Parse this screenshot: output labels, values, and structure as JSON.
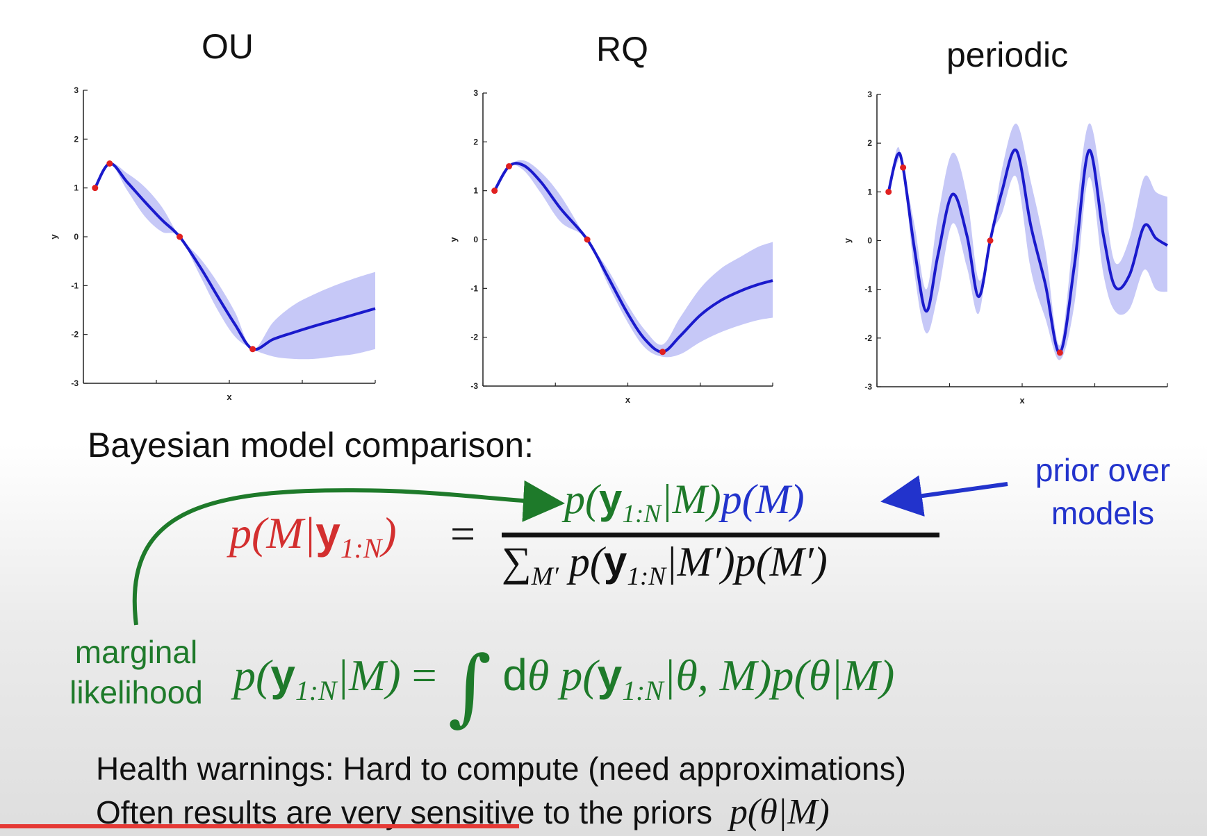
{
  "chart_data": [
    {
      "type": "line",
      "title": "OU",
      "xlabel": "x",
      "ylabel": "y",
      "ylim": [
        -3,
        3
      ],
      "yticks": [
        "3",
        "2",
        "1",
        "0",
        "-1",
        "-2",
        "-3"
      ],
      "xlim": [
        0,
        1
      ],
      "observations": [
        [
          0.04,
          1.0
        ],
        [
          0.09,
          1.5
        ],
        [
          0.33,
          0.0
        ],
        [
          0.58,
          -2.3
        ]
      ],
      "series": [
        {
          "x": [
            0.04,
            0.09,
            0.15,
            0.21,
            0.27,
            0.33,
            0.4,
            0.46,
            0.52,
            0.58,
            0.65,
            0.72,
            0.79,
            0.86,
            0.93,
            1.0
          ],
          "values": [
            1.0,
            1.5,
            1.12,
            0.72,
            0.34,
            0.0,
            -0.62,
            -1.22,
            -1.8,
            -2.3,
            -2.1,
            -1.96,
            -1.83,
            -1.71,
            -1.59,
            -1.47
          ],
          "lower": [
            1.0,
            1.5,
            0.95,
            0.42,
            0.1,
            0.0,
            -0.8,
            -1.5,
            -2.05,
            -2.3,
            -2.45,
            -2.5,
            -2.5,
            -2.45,
            -2.4,
            -2.3
          ],
          "upper": [
            1.0,
            1.5,
            1.3,
            1.02,
            0.6,
            0.0,
            -0.44,
            -0.94,
            -1.55,
            -2.3,
            -1.75,
            -1.4,
            -1.18,
            -1.0,
            -0.85,
            -0.72
          ]
        }
      ]
    },
    {
      "type": "line",
      "title": "RQ",
      "xlabel": "x",
      "ylabel": "y",
      "ylim": [
        -3,
        3
      ],
      "yticks": [
        "3",
        "2",
        "1",
        "0",
        "-1",
        "-2",
        "-3"
      ],
      "xlim": [
        0,
        1
      ],
      "observations": [
        [
          0.04,
          1.0
        ],
        [
          0.09,
          1.5
        ],
        [
          0.36,
          0.0
        ],
        [
          0.62,
          -2.3
        ]
      ],
      "series": [
        {
          "x": [
            0.04,
            0.09,
            0.14,
            0.2,
            0.27,
            0.36,
            0.43,
            0.5,
            0.56,
            0.62,
            0.68,
            0.75,
            0.82,
            0.89,
            0.95,
            1.0
          ],
          "values": [
            1.0,
            1.5,
            1.52,
            1.18,
            0.62,
            0.0,
            -0.75,
            -1.52,
            -2.05,
            -2.3,
            -1.98,
            -1.55,
            -1.25,
            -1.05,
            -0.92,
            -0.84
          ],
          "lower": [
            1.0,
            1.5,
            1.42,
            0.95,
            0.35,
            0.0,
            -0.9,
            -1.7,
            -2.22,
            -2.4,
            -2.35,
            -2.1,
            -1.9,
            -1.75,
            -1.65,
            -1.6
          ],
          "upper": [
            1.0,
            1.5,
            1.62,
            1.38,
            0.88,
            0.0,
            -0.6,
            -1.34,
            -1.86,
            -2.15,
            -1.6,
            -1.0,
            -0.6,
            -0.35,
            -0.15,
            -0.05
          ]
        }
      ]
    },
    {
      "type": "line",
      "title": "periodic",
      "xlabel": "x",
      "ylabel": "y",
      "ylim": [
        -3,
        3
      ],
      "yticks": [
        "3",
        "2",
        "1",
        "0",
        "-1",
        "-2",
        "-3"
      ],
      "xlim": [
        0,
        1
      ],
      "observations": [
        [
          0.04,
          1.0
        ],
        [
          0.09,
          1.5
        ],
        [
          0.39,
          0.0
        ],
        [
          0.63,
          -2.3
        ]
      ],
      "series": [
        {
          "x": [
            0.04,
            0.07,
            0.09,
            0.13,
            0.17,
            0.21,
            0.26,
            0.31,
            0.35,
            0.39,
            0.43,
            0.48,
            0.53,
            0.58,
            0.63,
            0.68,
            0.73,
            0.78,
            0.82,
            0.87,
            0.92,
            0.96,
            1.0
          ],
          "values": [
            1.0,
            1.75,
            1.5,
            -0.2,
            -1.45,
            -0.3,
            0.95,
            0.1,
            -1.15,
            0.0,
            1.0,
            1.85,
            0.3,
            -0.9,
            -2.3,
            -0.5,
            1.85,
            0.1,
            -0.95,
            -0.7,
            0.3,
            0.05,
            -0.1
          ],
          "lower": [
            1.0,
            1.6,
            1.5,
            -0.7,
            -1.9,
            -1.1,
            0.35,
            -0.55,
            -1.5,
            0.0,
            0.55,
            1.3,
            -0.6,
            -1.6,
            -2.45,
            -1.3,
            1.3,
            -0.7,
            -1.45,
            -1.4,
            -0.6,
            -1.0,
            -1.05
          ],
          "upper": [
            1.0,
            1.9,
            1.5,
            0.3,
            -1.0,
            0.5,
            1.8,
            0.9,
            -0.8,
            0.0,
            1.45,
            2.4,
            1.2,
            -0.2,
            -2.15,
            0.3,
            2.4,
            0.9,
            -0.45,
            0.05,
            1.3,
            1.0,
            0.9
          ]
        }
      ]
    }
  ],
  "colors": {
    "mean_line": "#1a1acc",
    "band": "#c6c8f7",
    "points": "#e02020",
    "axis": "#222222",
    "red_text": "#d32f2f",
    "green_text": "#1e7a2a",
    "blue_text": "#2233cc",
    "progress": "#e53935"
  },
  "heading": "Bayesian model comparison:",
  "annotations": {
    "prior_line1": "prior over",
    "prior_line2": "models",
    "marginal_line1": "marginal",
    "marginal_line2": "likelihood"
  },
  "formula_symbols": {
    "p": "p",
    "M": "M",
    "Mprime": "M′",
    "y": "y",
    "sub": "1:N",
    "theta": "θ",
    "sum": "∑",
    "int": "∫",
    "d": "d",
    "eq": "="
  },
  "warnings": {
    "line1": "Health warnings: Hard to compute (need approximations)",
    "line2": "Often results are very sensitive to the priors"
  },
  "video_progress": 0.43
}
